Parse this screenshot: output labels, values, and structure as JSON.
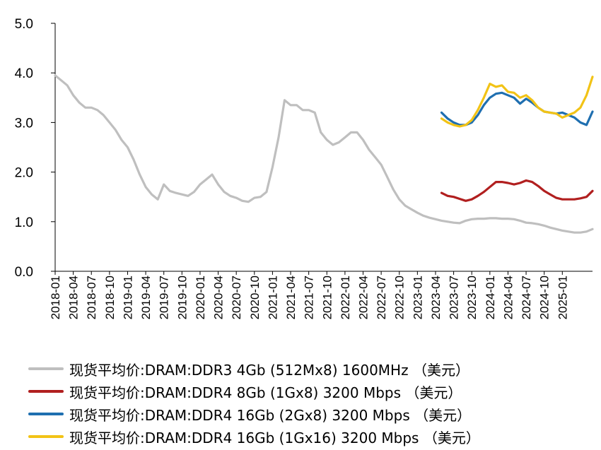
{
  "chart_data": {
    "type": "line",
    "title": "",
    "xlabel": "",
    "ylabel": "",
    "ylim": [
      0,
      5
    ],
    "y_ticks": [
      "0.0",
      "1.0",
      "2.0",
      "3.0",
      "4.0",
      "5.0"
    ],
    "y_tick_values": [
      0,
      1,
      2,
      3,
      4,
      5
    ],
    "x_range": [
      "2018-01",
      "2025-06"
    ],
    "x_ticks": [
      "2018-01",
      "2018-04",
      "2018-07",
      "2018-10",
      "2019-01",
      "2019-04",
      "2019-07",
      "2019-10",
      "2020-01",
      "2020-04",
      "2020-07",
      "2020-10",
      "2021-01",
      "2021-04",
      "2021-07",
      "2021-10",
      "2022-01",
      "2022-04",
      "2022-07",
      "2022-10",
      "2023-01",
      "2023-04",
      "2023-07",
      "2023-10",
      "2024-01",
      "2024-04",
      "2024-07",
      "2024-10",
      "2025-01"
    ],
    "grid": false,
    "legend_position": "bottom",
    "series": [
      {
        "name": "现货平均价:DRAM:DDR3 4Gb (512Mx8) 1600MHz （美元）",
        "color": "#bfbfbf",
        "points": [
          [
            "2018-01",
            3.95
          ],
          [
            "2018-02",
            3.85
          ],
          [
            "2018-03",
            3.75
          ],
          [
            "2018-04",
            3.55
          ],
          [
            "2018-05",
            3.4
          ],
          [
            "2018-06",
            3.3
          ],
          [
            "2018-07",
            3.3
          ],
          [
            "2018-08",
            3.25
          ],
          [
            "2018-09",
            3.15
          ],
          [
            "2018-10",
            3.0
          ],
          [
            "2018-11",
            2.85
          ],
          [
            "2018-12",
            2.65
          ],
          [
            "2019-01",
            2.5
          ],
          [
            "2019-02",
            2.25
          ],
          [
            "2019-03",
            1.95
          ],
          [
            "2019-04",
            1.7
          ],
          [
            "2019-05",
            1.55
          ],
          [
            "2019-06",
            1.45
          ],
          [
            "2019-07",
            1.75
          ],
          [
            "2019-08",
            1.62
          ],
          [
            "2019-09",
            1.58
          ],
          [
            "2019-10",
            1.55
          ],
          [
            "2019-11",
            1.52
          ],
          [
            "2019-12",
            1.6
          ],
          [
            "2020-01",
            1.75
          ],
          [
            "2020-02",
            1.85
          ],
          [
            "2020-03",
            1.95
          ],
          [
            "2020-04",
            1.75
          ],
          [
            "2020-05",
            1.6
          ],
          [
            "2020-06",
            1.52
          ],
          [
            "2020-07",
            1.48
          ],
          [
            "2020-08",
            1.42
          ],
          [
            "2020-09",
            1.4
          ],
          [
            "2020-10",
            1.48
          ],
          [
            "2020-11",
            1.5
          ],
          [
            "2020-12",
            1.6
          ],
          [
            "2021-01",
            2.1
          ],
          [
            "2021-02",
            2.7
          ],
          [
            "2021-03",
            3.45
          ],
          [
            "2021-04",
            3.35
          ],
          [
            "2021-05",
            3.35
          ],
          [
            "2021-06",
            3.25
          ],
          [
            "2021-07",
            3.25
          ],
          [
            "2021-08",
            3.2
          ],
          [
            "2021-09",
            2.8
          ],
          [
            "2021-10",
            2.65
          ],
          [
            "2021-11",
            2.55
          ],
          [
            "2021-12",
            2.6
          ],
          [
            "2022-01",
            2.7
          ],
          [
            "2022-02",
            2.8
          ],
          [
            "2022-03",
            2.8
          ],
          [
            "2022-04",
            2.65
          ],
          [
            "2022-05",
            2.45
          ],
          [
            "2022-06",
            2.3
          ],
          [
            "2022-07",
            2.15
          ],
          [
            "2022-08",
            1.9
          ],
          [
            "2022-09",
            1.65
          ],
          [
            "2022-10",
            1.45
          ],
          [
            "2022-11",
            1.32
          ],
          [
            "2022-12",
            1.25
          ],
          [
            "2023-01",
            1.18
          ],
          [
            "2023-02",
            1.12
          ],
          [
            "2023-03",
            1.08
          ],
          [
            "2023-04",
            1.05
          ],
          [
            "2023-05",
            1.02
          ],
          [
            "2023-06",
            1.0
          ],
          [
            "2023-07",
            0.98
          ],
          [
            "2023-08",
            0.97
          ],
          [
            "2023-09",
            1.02
          ],
          [
            "2023-10",
            1.05
          ],
          [
            "2023-11",
            1.06
          ],
          [
            "2023-12",
            1.06
          ],
          [
            "2024-01",
            1.07
          ],
          [
            "2024-02",
            1.07
          ],
          [
            "2024-03",
            1.06
          ],
          [
            "2024-04",
            1.06
          ],
          [
            "2024-05",
            1.05
          ],
          [
            "2024-06",
            1.02
          ],
          [
            "2024-07",
            0.98
          ],
          [
            "2024-08",
            0.97
          ],
          [
            "2024-09",
            0.95
          ],
          [
            "2024-10",
            0.92
          ],
          [
            "2024-11",
            0.88
          ],
          [
            "2024-12",
            0.85
          ],
          [
            "2025-01",
            0.82
          ],
          [
            "2025-02",
            0.8
          ],
          [
            "2025-03",
            0.78
          ],
          [
            "2025-04",
            0.78
          ],
          [
            "2025-05",
            0.8
          ],
          [
            "2025-06",
            0.85
          ]
        ]
      },
      {
        "name": "现货平均价:DRAM:DDR4 8Gb (1Gx8) 3200 Mbps （美元）",
        "color": "#b11f1f",
        "points": [
          [
            "2023-05",
            1.58
          ],
          [
            "2023-06",
            1.52
          ],
          [
            "2023-07",
            1.5
          ],
          [
            "2023-08",
            1.46
          ],
          [
            "2023-09",
            1.42
          ],
          [
            "2023-10",
            1.45
          ],
          [
            "2023-11",
            1.52
          ],
          [
            "2023-12",
            1.6
          ],
          [
            "2024-01",
            1.7
          ],
          [
            "2024-02",
            1.8
          ],
          [
            "2024-03",
            1.8
          ],
          [
            "2024-04",
            1.78
          ],
          [
            "2024-05",
            1.75
          ],
          [
            "2024-06",
            1.78
          ],
          [
            "2024-07",
            1.83
          ],
          [
            "2024-08",
            1.8
          ],
          [
            "2024-09",
            1.72
          ],
          [
            "2024-10",
            1.62
          ],
          [
            "2024-11",
            1.55
          ],
          [
            "2024-12",
            1.48
          ],
          [
            "2025-01",
            1.45
          ],
          [
            "2025-02",
            1.45
          ],
          [
            "2025-03",
            1.45
          ],
          [
            "2025-04",
            1.47
          ],
          [
            "2025-05",
            1.5
          ],
          [
            "2025-06",
            1.62
          ]
        ]
      },
      {
        "name": "现货平均价:DRAM:DDR4 16Gb (2Gx8) 3200 Mbps （美元）",
        "color": "#1f6fb0",
        "points": [
          [
            "2023-05",
            3.2
          ],
          [
            "2023-06",
            3.08
          ],
          [
            "2023-07",
            3.0
          ],
          [
            "2023-08",
            2.95
          ],
          [
            "2023-09",
            2.95
          ],
          [
            "2023-10",
            3.0
          ],
          [
            "2023-11",
            3.15
          ],
          [
            "2023-12",
            3.35
          ],
          [
            "2024-01",
            3.5
          ],
          [
            "2024-02",
            3.58
          ],
          [
            "2024-03",
            3.6
          ],
          [
            "2024-04",
            3.55
          ],
          [
            "2024-05",
            3.5
          ],
          [
            "2024-06",
            3.38
          ],
          [
            "2024-07",
            3.48
          ],
          [
            "2024-08",
            3.4
          ],
          [
            "2024-09",
            3.3
          ],
          [
            "2024-10",
            3.22
          ],
          [
            "2024-11",
            3.2
          ],
          [
            "2024-12",
            3.18
          ],
          [
            "2025-01",
            3.2
          ],
          [
            "2025-02",
            3.15
          ],
          [
            "2025-03",
            3.1
          ],
          [
            "2025-04",
            3.0
          ],
          [
            "2025-05",
            2.95
          ],
          [
            "2025-06",
            3.22
          ]
        ]
      },
      {
        "name": "现货平均价:DRAM:DDR4 16Gb (1Gx16) 3200 Mbps （美元）",
        "color": "#f2c316",
        "points": [
          [
            "2023-05",
            3.08
          ],
          [
            "2023-06",
            3.0
          ],
          [
            "2023-07",
            2.95
          ],
          [
            "2023-08",
            2.92
          ],
          [
            "2023-09",
            2.95
          ],
          [
            "2023-10",
            3.05
          ],
          [
            "2023-11",
            3.25
          ],
          [
            "2023-12",
            3.5
          ],
          [
            "2024-01",
            3.78
          ],
          [
            "2024-02",
            3.72
          ],
          [
            "2024-03",
            3.75
          ],
          [
            "2024-04",
            3.62
          ],
          [
            "2024-05",
            3.6
          ],
          [
            "2024-06",
            3.5
          ],
          [
            "2024-07",
            3.55
          ],
          [
            "2024-08",
            3.45
          ],
          [
            "2024-09",
            3.3
          ],
          [
            "2024-10",
            3.22
          ],
          [
            "2024-11",
            3.2
          ],
          [
            "2024-12",
            3.18
          ],
          [
            "2025-01",
            3.1
          ],
          [
            "2025-02",
            3.15
          ],
          [
            "2025-03",
            3.2
          ],
          [
            "2025-04",
            3.3
          ],
          [
            "2025-05",
            3.55
          ],
          [
            "2025-06",
            3.92
          ]
        ]
      }
    ]
  }
}
